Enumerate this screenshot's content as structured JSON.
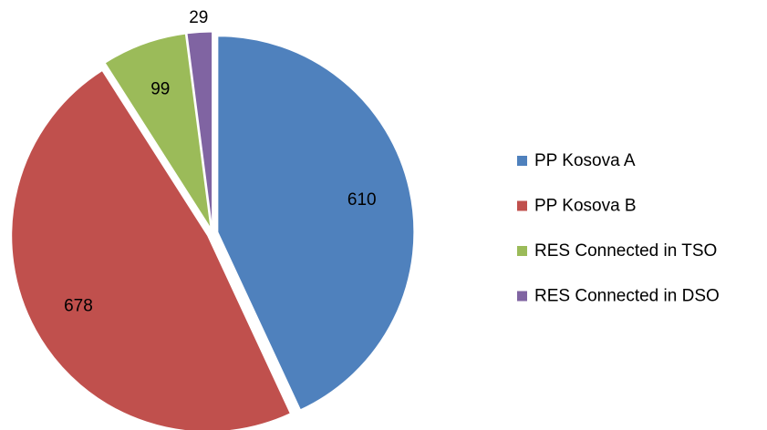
{
  "chart_data": {
    "type": "pie",
    "categories": [
      "PP Kosova A",
      "PP Kosova B",
      "RES Connected in TSO",
      "RES Connected in DSO"
    ],
    "values": [
      610,
      678,
      99,
      29
    ],
    "colors": [
      "#4f81bd",
      "#c0504d",
      "#9bbb59",
      "#8064a2"
    ],
    "legend": "right"
  }
}
